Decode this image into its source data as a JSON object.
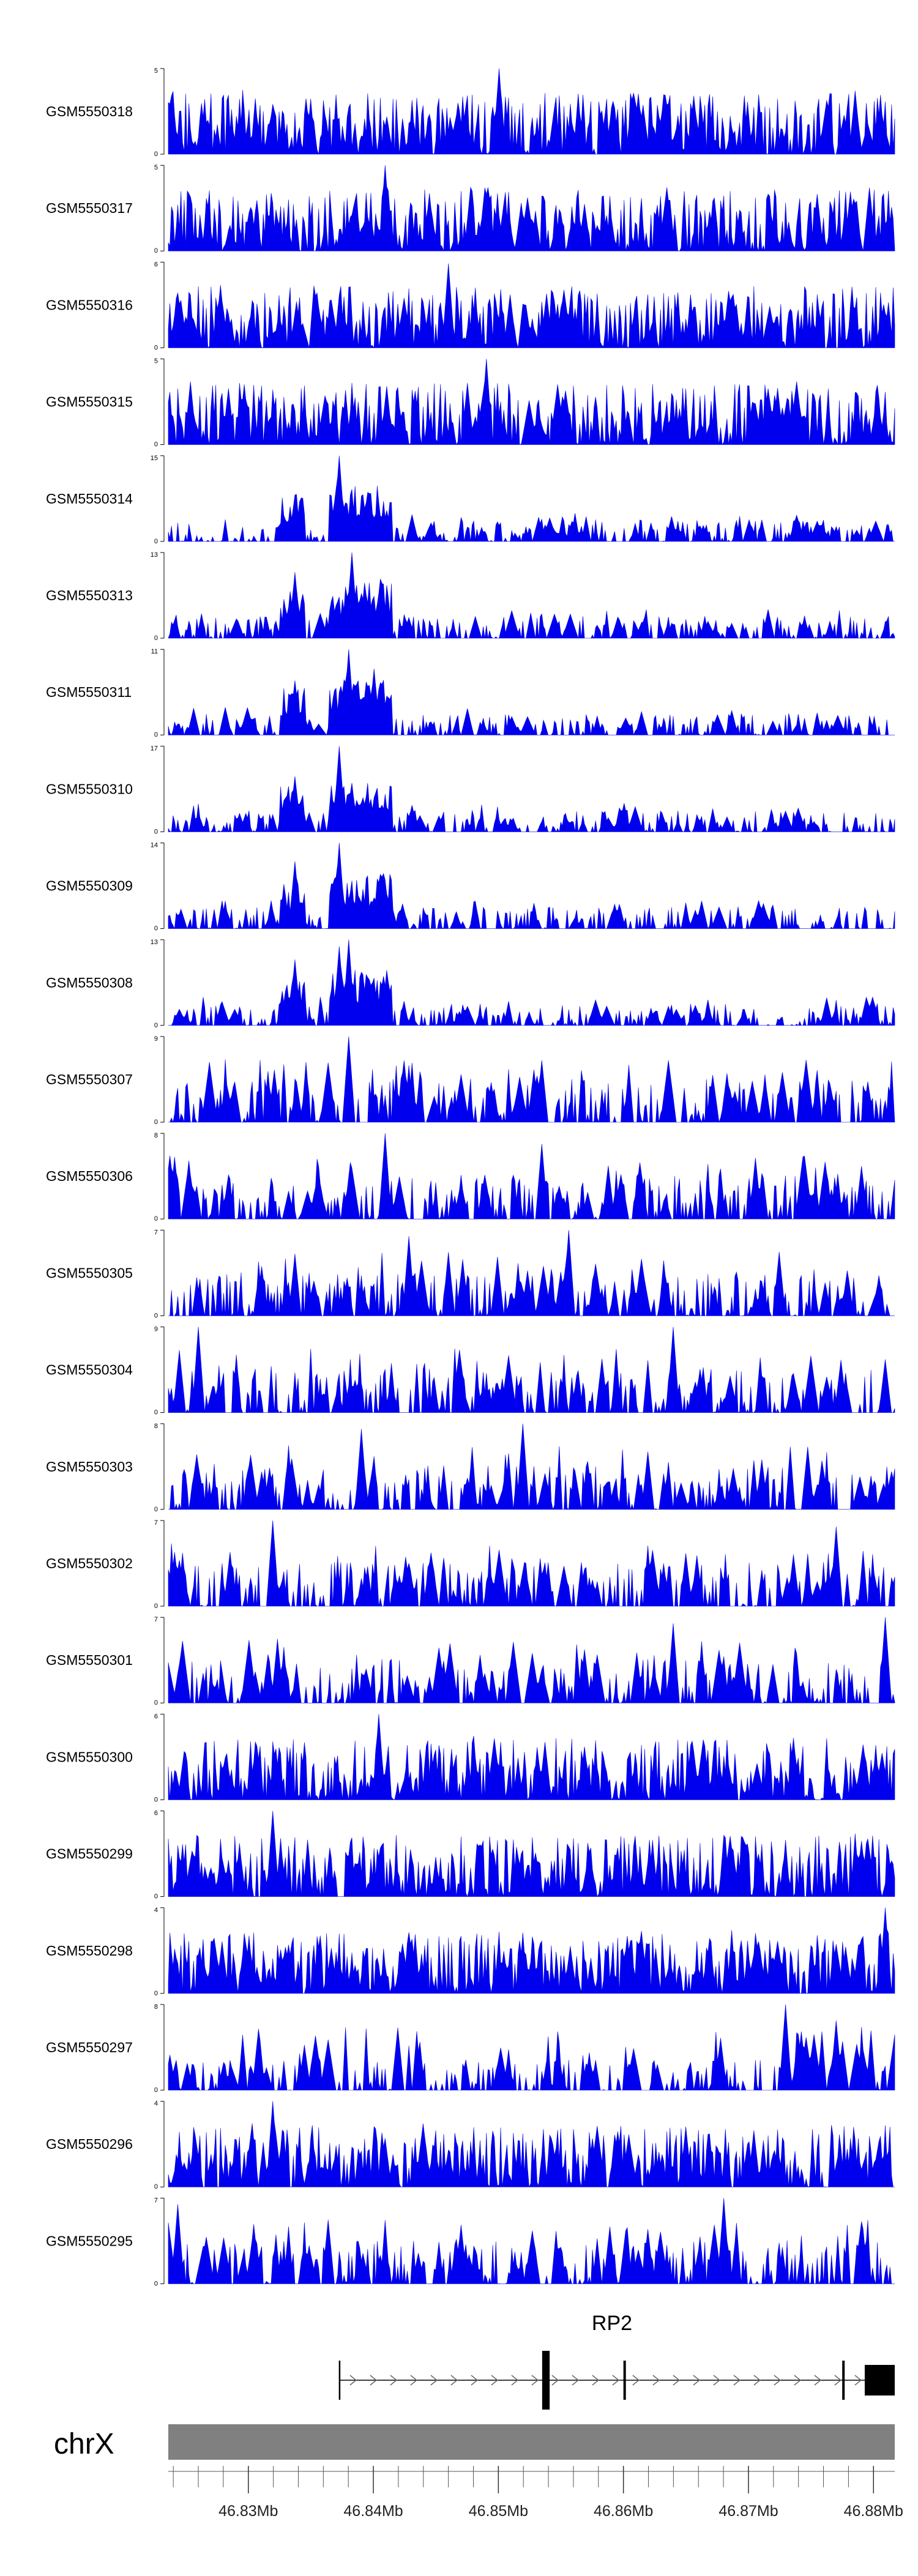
{
  "chart_data": {
    "type": "area",
    "color": "#0000ee",
    "gene_color": "#000000",
    "ideogram_color": "#808080",
    "x_range": [
      46.8236,
      46.8817
    ],
    "x_unit": "Mb",
    "chromosome": "chrX",
    "x_ticks": [
      {
        "value": 46.83,
        "label": "46.83Mb"
      },
      {
        "value": 46.84,
        "label": "46.84Mb"
      },
      {
        "value": 46.85,
        "label": "46.85Mb"
      },
      {
        "value": 46.86,
        "label": "46.86Mb"
      },
      {
        "value": 46.87,
        "label": "46.87Mb"
      },
      {
        "value": 46.88,
        "label": "46.88Mb"
      }
    ],
    "minor_tick_step": 0.002,
    "tracks": [
      {
        "name": "GSM5550318",
        "ymax": 5,
        "pattern": "flat",
        "peaks": [
          [
            46.85,
            5.0
          ]
        ]
      },
      {
        "name": "GSM5550317",
        "ymax": 5,
        "pattern": "flat",
        "peaks": [
          [
            46.841,
            5.0
          ]
        ]
      },
      {
        "name": "GSM5550316",
        "ymax": 6,
        "pattern": "flat",
        "peaks": [
          [
            46.846,
            5.9
          ]
        ]
      },
      {
        "name": "GSM5550315",
        "ymax": 5,
        "pattern": "flat",
        "peaks": [
          [
            46.849,
            5.0
          ]
        ]
      },
      {
        "name": "GSM5550314",
        "ymax": 15,
        "pattern": "enriched",
        "peaks": [
          [
            46.8373,
            15.0
          ],
          [
            46.8337,
            8.0
          ]
        ]
      },
      {
        "name": "GSM5550313",
        "ymax": 13,
        "pattern": "enriched",
        "peaks": [
          [
            46.8383,
            13.0
          ],
          [
            46.8337,
            10.0
          ],
          [
            46.8405,
            9.0
          ]
        ]
      },
      {
        "name": "GSM5550311",
        "ymax": 11,
        "pattern": "enriched",
        "peaks": [
          [
            46.838,
            11.0
          ],
          [
            46.8337,
            7.0
          ],
          [
            46.84,
            8.5
          ]
        ]
      },
      {
        "name": "GSM5550310",
        "ymax": 17,
        "pattern": "enriched",
        "peaks": [
          [
            46.8373,
            17.0
          ],
          [
            46.8337,
            11.0
          ]
        ]
      },
      {
        "name": "GSM5550309",
        "ymax": 14,
        "pattern": "enriched",
        "peaks": [
          [
            46.8373,
            14.0
          ],
          [
            46.8337,
            11.0
          ]
        ]
      },
      {
        "name": "GSM5550308",
        "ymax": 13,
        "pattern": "enriched",
        "peaks": [
          [
            46.838,
            13.0
          ],
          [
            46.8373,
            12.0
          ],
          [
            46.8337,
            10.0
          ]
        ]
      },
      {
        "name": "GSM5550307",
        "ymax": 9,
        "pattern": "spiky",
        "peaks": [
          [
            46.838,
            9.0
          ],
          [
            46.8535,
            6.5
          ]
        ]
      },
      {
        "name": "GSM5550306",
        "ymax": 8,
        "pattern": "spiky",
        "peaks": [
          [
            46.841,
            8.0
          ],
          [
            46.8535,
            7.0
          ]
        ]
      },
      {
        "name": "GSM5550305",
        "ymax": 7,
        "pattern": "spiky",
        "peaks": [
          [
            46.8556,
            7.0
          ],
          [
            46.8428,
            6.5
          ]
        ]
      },
      {
        "name": "GSM5550304",
        "ymax": 9,
        "pattern": "spiky",
        "peaks": [
          [
            46.864,
            9.0
          ],
          [
            46.826,
            9.0
          ]
        ]
      },
      {
        "name": "GSM5550303",
        "ymax": 8,
        "pattern": "spiky",
        "peaks": [
          [
            46.852,
            8.0
          ],
          [
            46.839,
            7.5
          ]
        ]
      },
      {
        "name": "GSM5550302",
        "ymax": 7,
        "pattern": "spiky",
        "peaks": [
          [
            46.832,
            7.0
          ],
          [
            46.877,
            6.5
          ]
        ]
      },
      {
        "name": "GSM5550301",
        "ymax": 7,
        "pattern": "spiky",
        "peaks": [
          [
            46.881,
            7.0
          ],
          [
            46.864,
            6.5
          ]
        ]
      },
      {
        "name": "GSM5550300",
        "ymax": 6,
        "pattern": "flat",
        "peaks": [
          [
            46.8404,
            6.0
          ]
        ]
      },
      {
        "name": "GSM5550299",
        "ymax": 6,
        "pattern": "flat",
        "peaks": [
          [
            46.832,
            6.0
          ]
        ]
      },
      {
        "name": "GSM5550298",
        "ymax": 4,
        "pattern": "flat",
        "peaks": [
          [
            46.881,
            4.0
          ]
        ]
      },
      {
        "name": "GSM5550297",
        "ymax": 8,
        "pattern": "sparse",
        "peaks": [
          [
            46.873,
            8.0
          ],
          [
            46.877,
            6.5
          ]
        ]
      },
      {
        "name": "GSM5550296",
        "ymax": 4,
        "pattern": "flat",
        "peaks": [
          [
            46.832,
            4.0
          ]
        ]
      },
      {
        "name": "GSM5550295",
        "ymax": 7,
        "pattern": "spiky",
        "peaks": [
          [
            46.868,
            7.0
          ],
          [
            46.8244,
            6.5
          ]
        ]
      }
    ],
    "gene": {
      "name": "RP2",
      "start": 46.8373,
      "end": 46.8817,
      "strand": "+",
      "exons": [
        {
          "start": 46.8535,
          "end": 46.8541
        },
        {
          "start": 46.86,
          "end": 46.8601
        },
        {
          "start": 46.8775,
          "end": 46.8776
        },
        {
          "start": 46.8793,
          "end": 46.8817
        }
      ]
    }
  }
}
